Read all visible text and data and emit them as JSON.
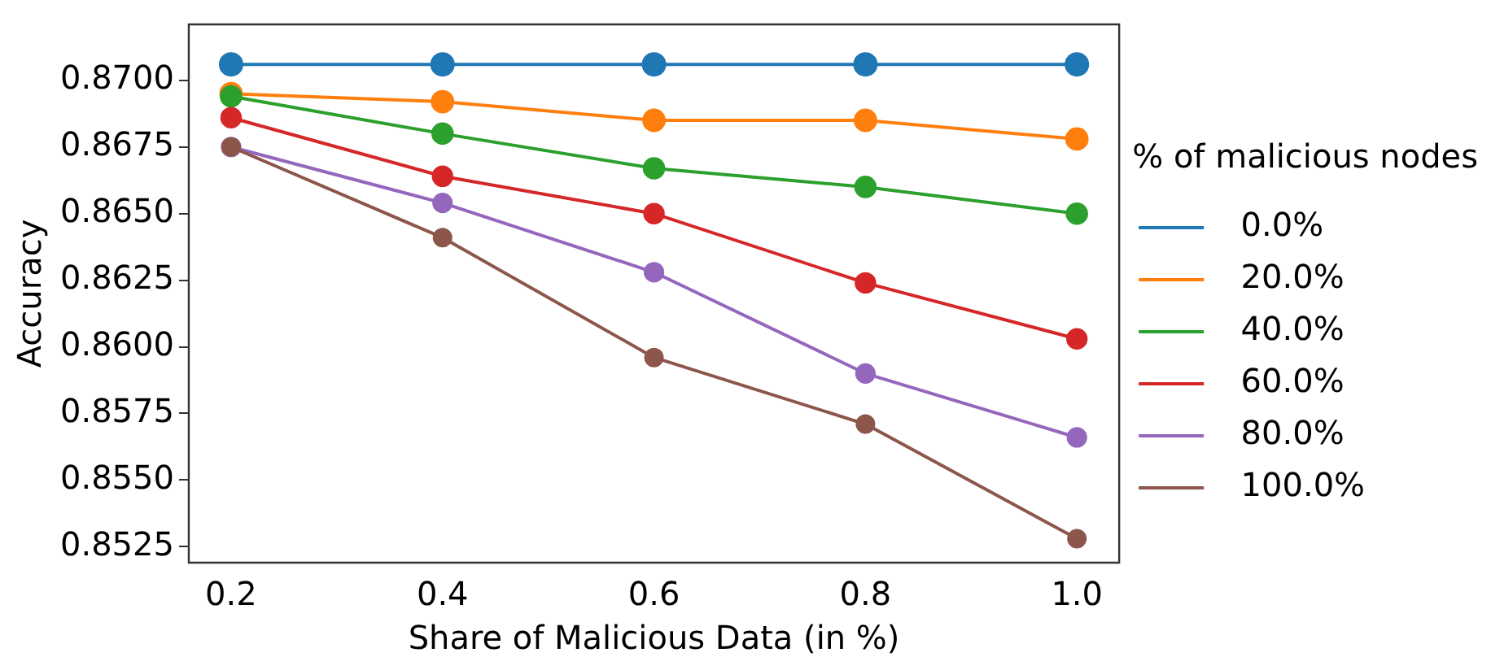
{
  "chart_data": {
    "type": "line",
    "xlabel": "Share of Malicious Data (in %)",
    "ylabel": "Accuracy",
    "legend_title": "% of malicious nodes",
    "x": [
      0.2,
      0.4,
      0.6,
      0.8,
      1.0
    ],
    "series": [
      {
        "name": "0.0%",
        "color": "#1f77b4",
        "values": [
          0.8706,
          0.8706,
          0.8706,
          0.8706,
          0.8706
        ]
      },
      {
        "name": "20.0%",
        "color": "#ff7f0e",
        "values": [
          0.8695,
          0.8692,
          0.8685,
          0.8685,
          0.8678
        ]
      },
      {
        "name": "40.0%",
        "color": "#2ca02c",
        "values": [
          0.8694,
          0.868,
          0.8667,
          0.866,
          0.865
        ]
      },
      {
        "name": "60.0%",
        "color": "#d62728",
        "values": [
          0.8686,
          0.8664,
          0.865,
          0.8624,
          0.8603
        ]
      },
      {
        "name": "80.0%",
        "color": "#9467bd",
        "values": [
          0.8675,
          0.8654,
          0.8628,
          0.859,
          0.8566
        ]
      },
      {
        "name": "100.0%",
        "color": "#8c564b",
        "values": [
          0.8675,
          0.8641,
          0.8596,
          0.8571,
          0.8528
        ]
      }
    ],
    "xlim": [
      0.16,
      1.04
    ],
    "xticks": [
      {
        "value": 0.2,
        "label": "0.2"
      },
      {
        "value": 0.4,
        "label": "0.4"
      },
      {
        "value": 0.6,
        "label": "0.6"
      },
      {
        "value": 0.8,
        "label": "0.8"
      },
      {
        "value": 1.0,
        "label": "1.0"
      }
    ],
    "ylim": [
      0.8519,
      0.8721
    ],
    "yticks": [
      {
        "value": 0.8525,
        "label": "0.8525"
      },
      {
        "value": 0.855,
        "label": "0.8550"
      },
      {
        "value": 0.8575,
        "label": "0.8575"
      },
      {
        "value": 0.86,
        "label": "0.8600"
      },
      {
        "value": 0.8625,
        "label": "0.8625"
      },
      {
        "value": 0.865,
        "label": "0.8650"
      },
      {
        "value": 0.8675,
        "label": "0.8675"
      },
      {
        "value": 0.87,
        "label": "0.8700"
      }
    ],
    "grid": false,
    "legend": "right",
    "marker": "circle",
    "line_style": "solid"
  }
}
